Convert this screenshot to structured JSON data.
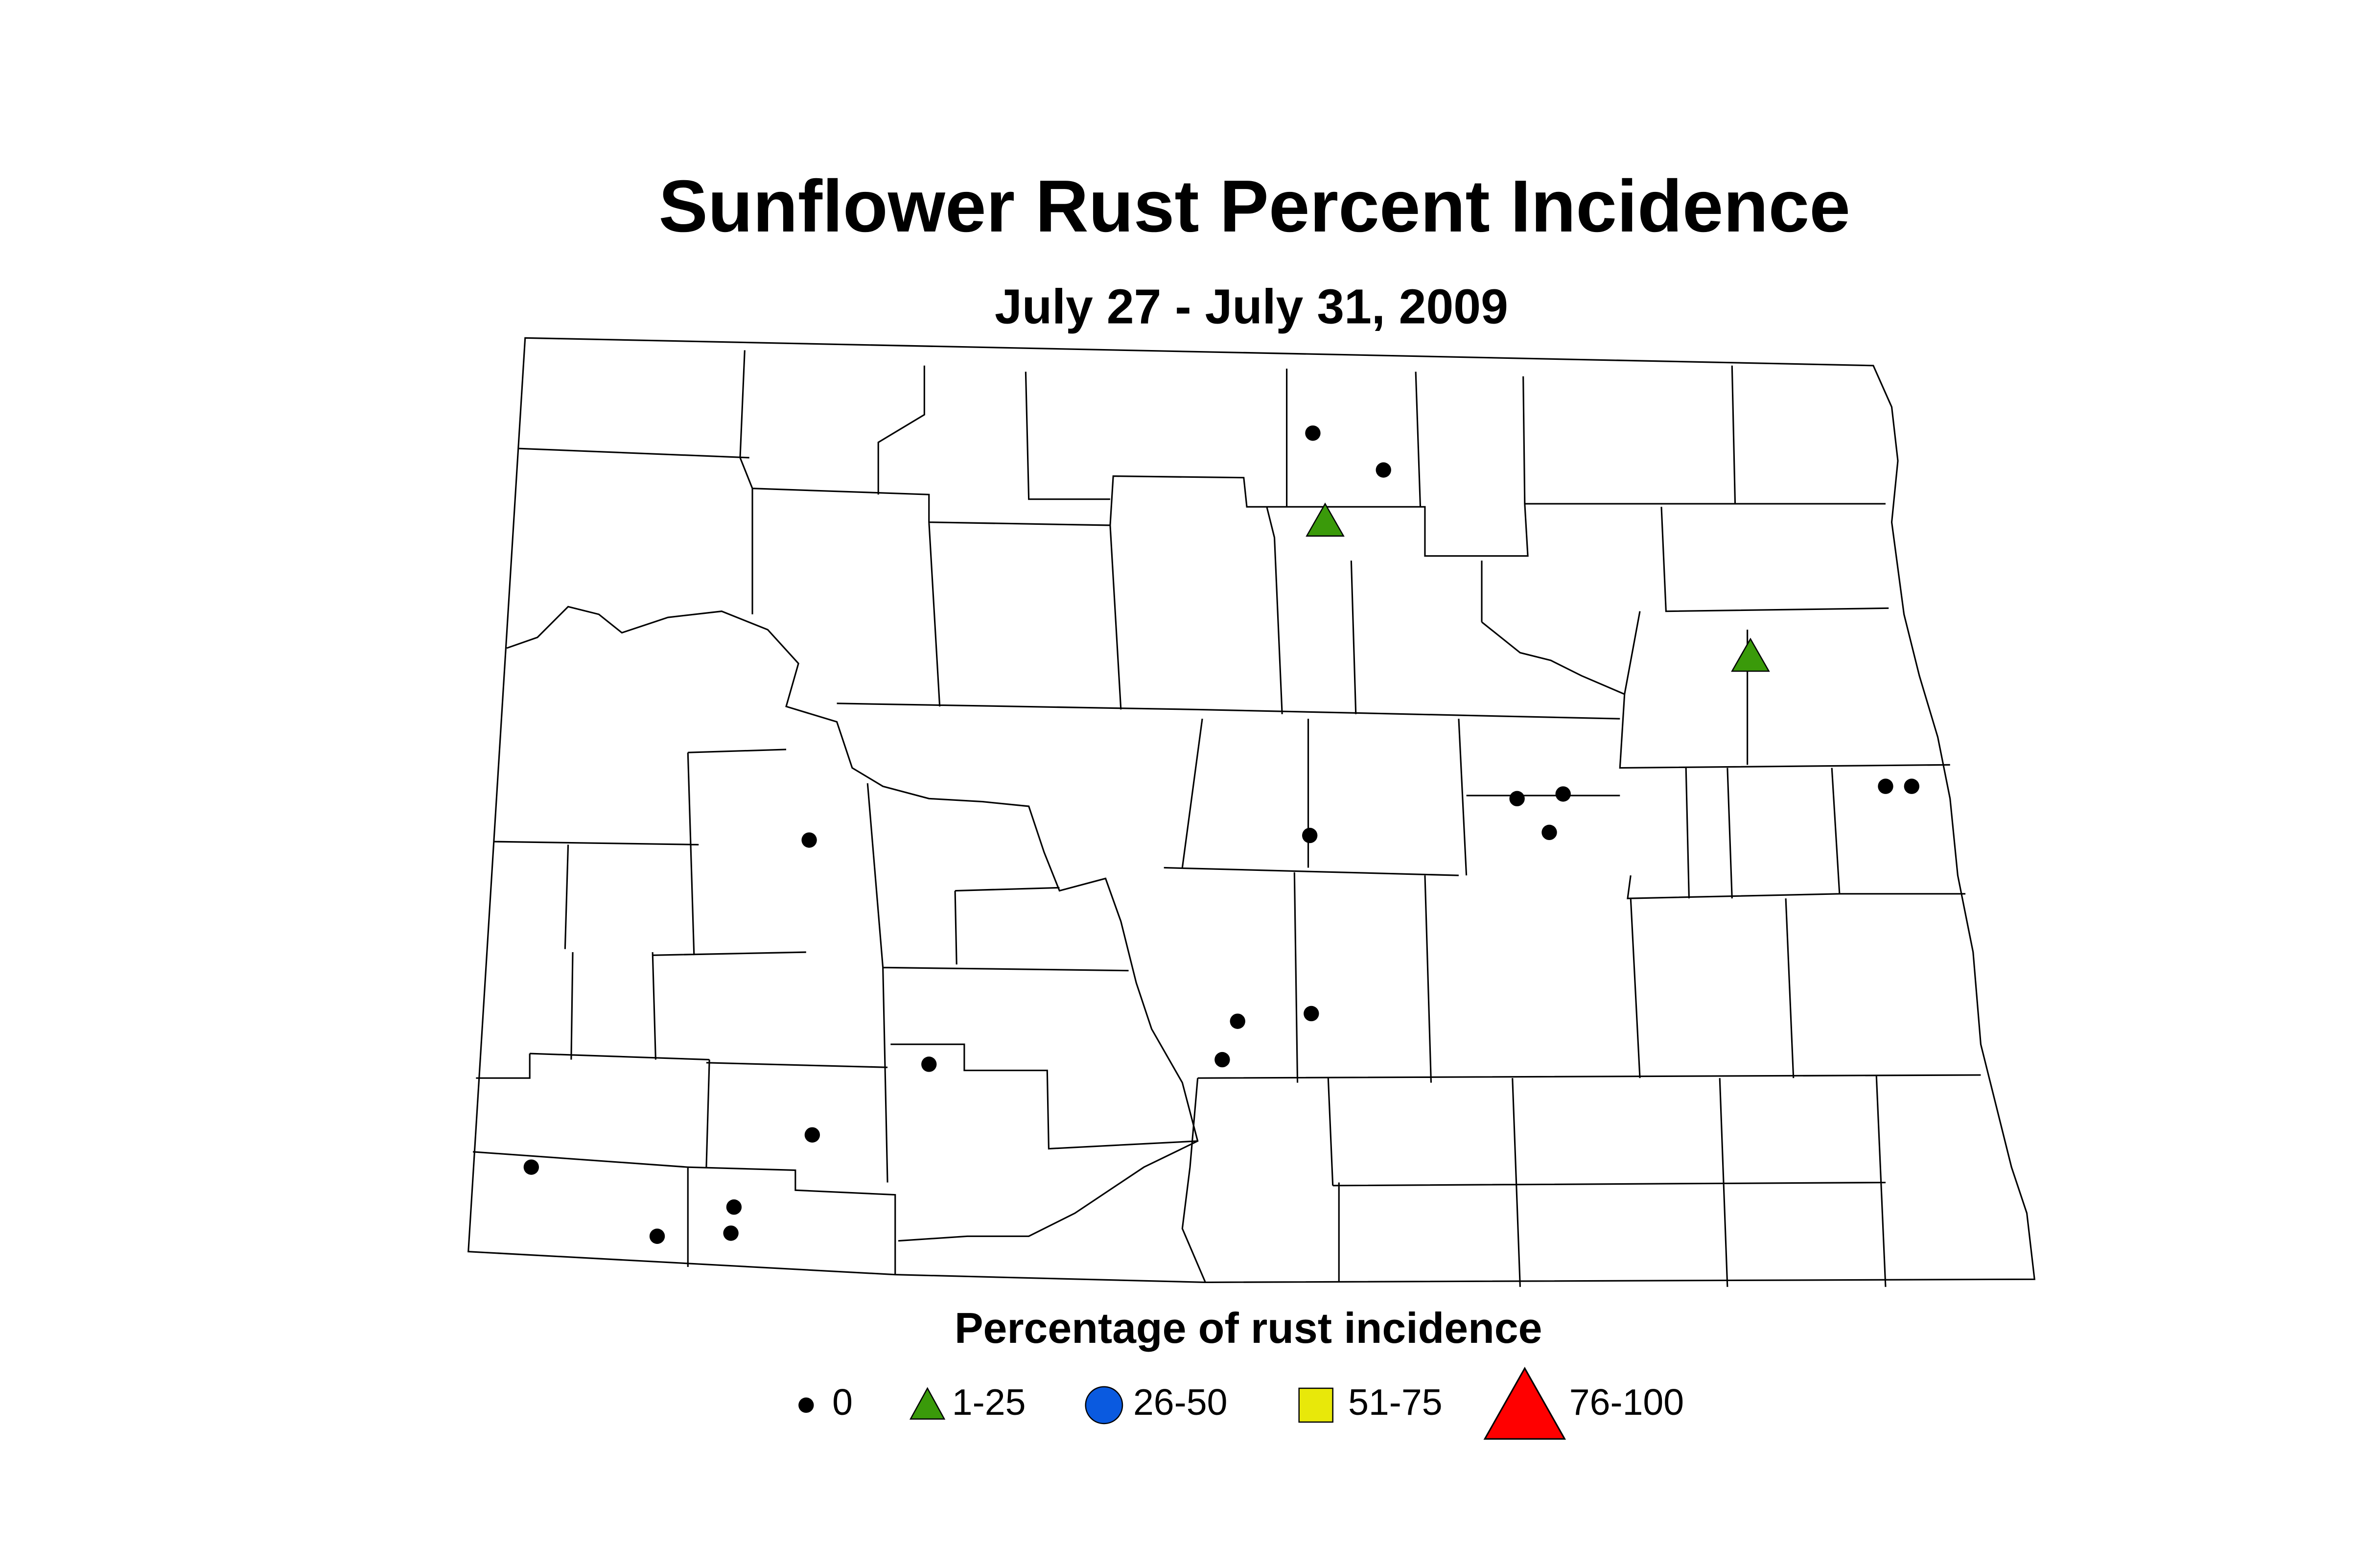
{
  "title": "Sunflower Rust Percent Incidence",
  "subtitle": "July 27 - July 31, 2009",
  "legend": {
    "title": "Percentage of rust incidence",
    "items": [
      {
        "label": "0",
        "marker": "dot",
        "color": "#000000"
      },
      {
        "label": "1-25",
        "marker": "triangle",
        "color": "#3a9a0a"
      },
      {
        "label": "26-50",
        "marker": "circle",
        "color": "#0a5ae0"
      },
      {
        "label": "51-75",
        "marker": "square",
        "color": "#e8e80a"
      },
      {
        "label": "76-100",
        "marker": "big-triangle",
        "color": "#ff0000"
      }
    ]
  }
}
